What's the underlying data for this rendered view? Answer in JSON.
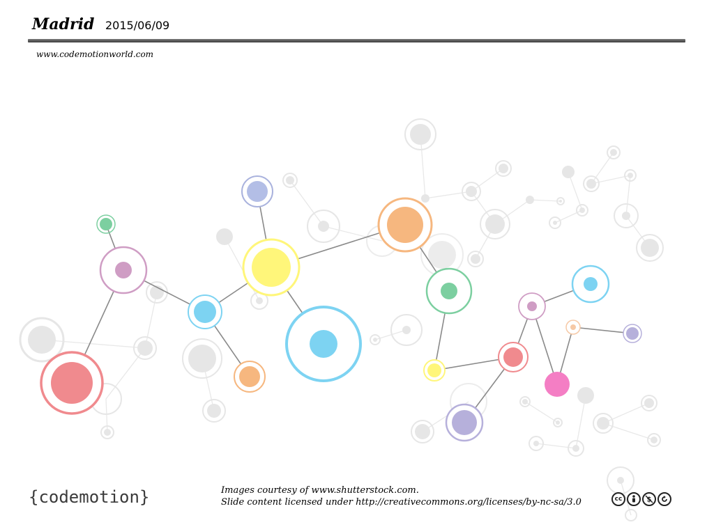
{
  "header": {
    "city": "Madrid",
    "date": "2015/06/09",
    "url": "www.codemotionworld.com"
  },
  "footer": {
    "logo_text": "{codemotion}",
    "credit_line1": "Images courtesy of www.shutterstock.com.",
    "credit_line2": "Slide content licensed under http://creativecommons.org/licenses/by-nc-sa/3.0",
    "license_icons": [
      "cc",
      "by",
      "nc",
      "sa"
    ]
  },
  "colors": {
    "rule": "#555555",
    "gray_node": "#e3e3e3",
    "edge": "#888888"
  }
}
